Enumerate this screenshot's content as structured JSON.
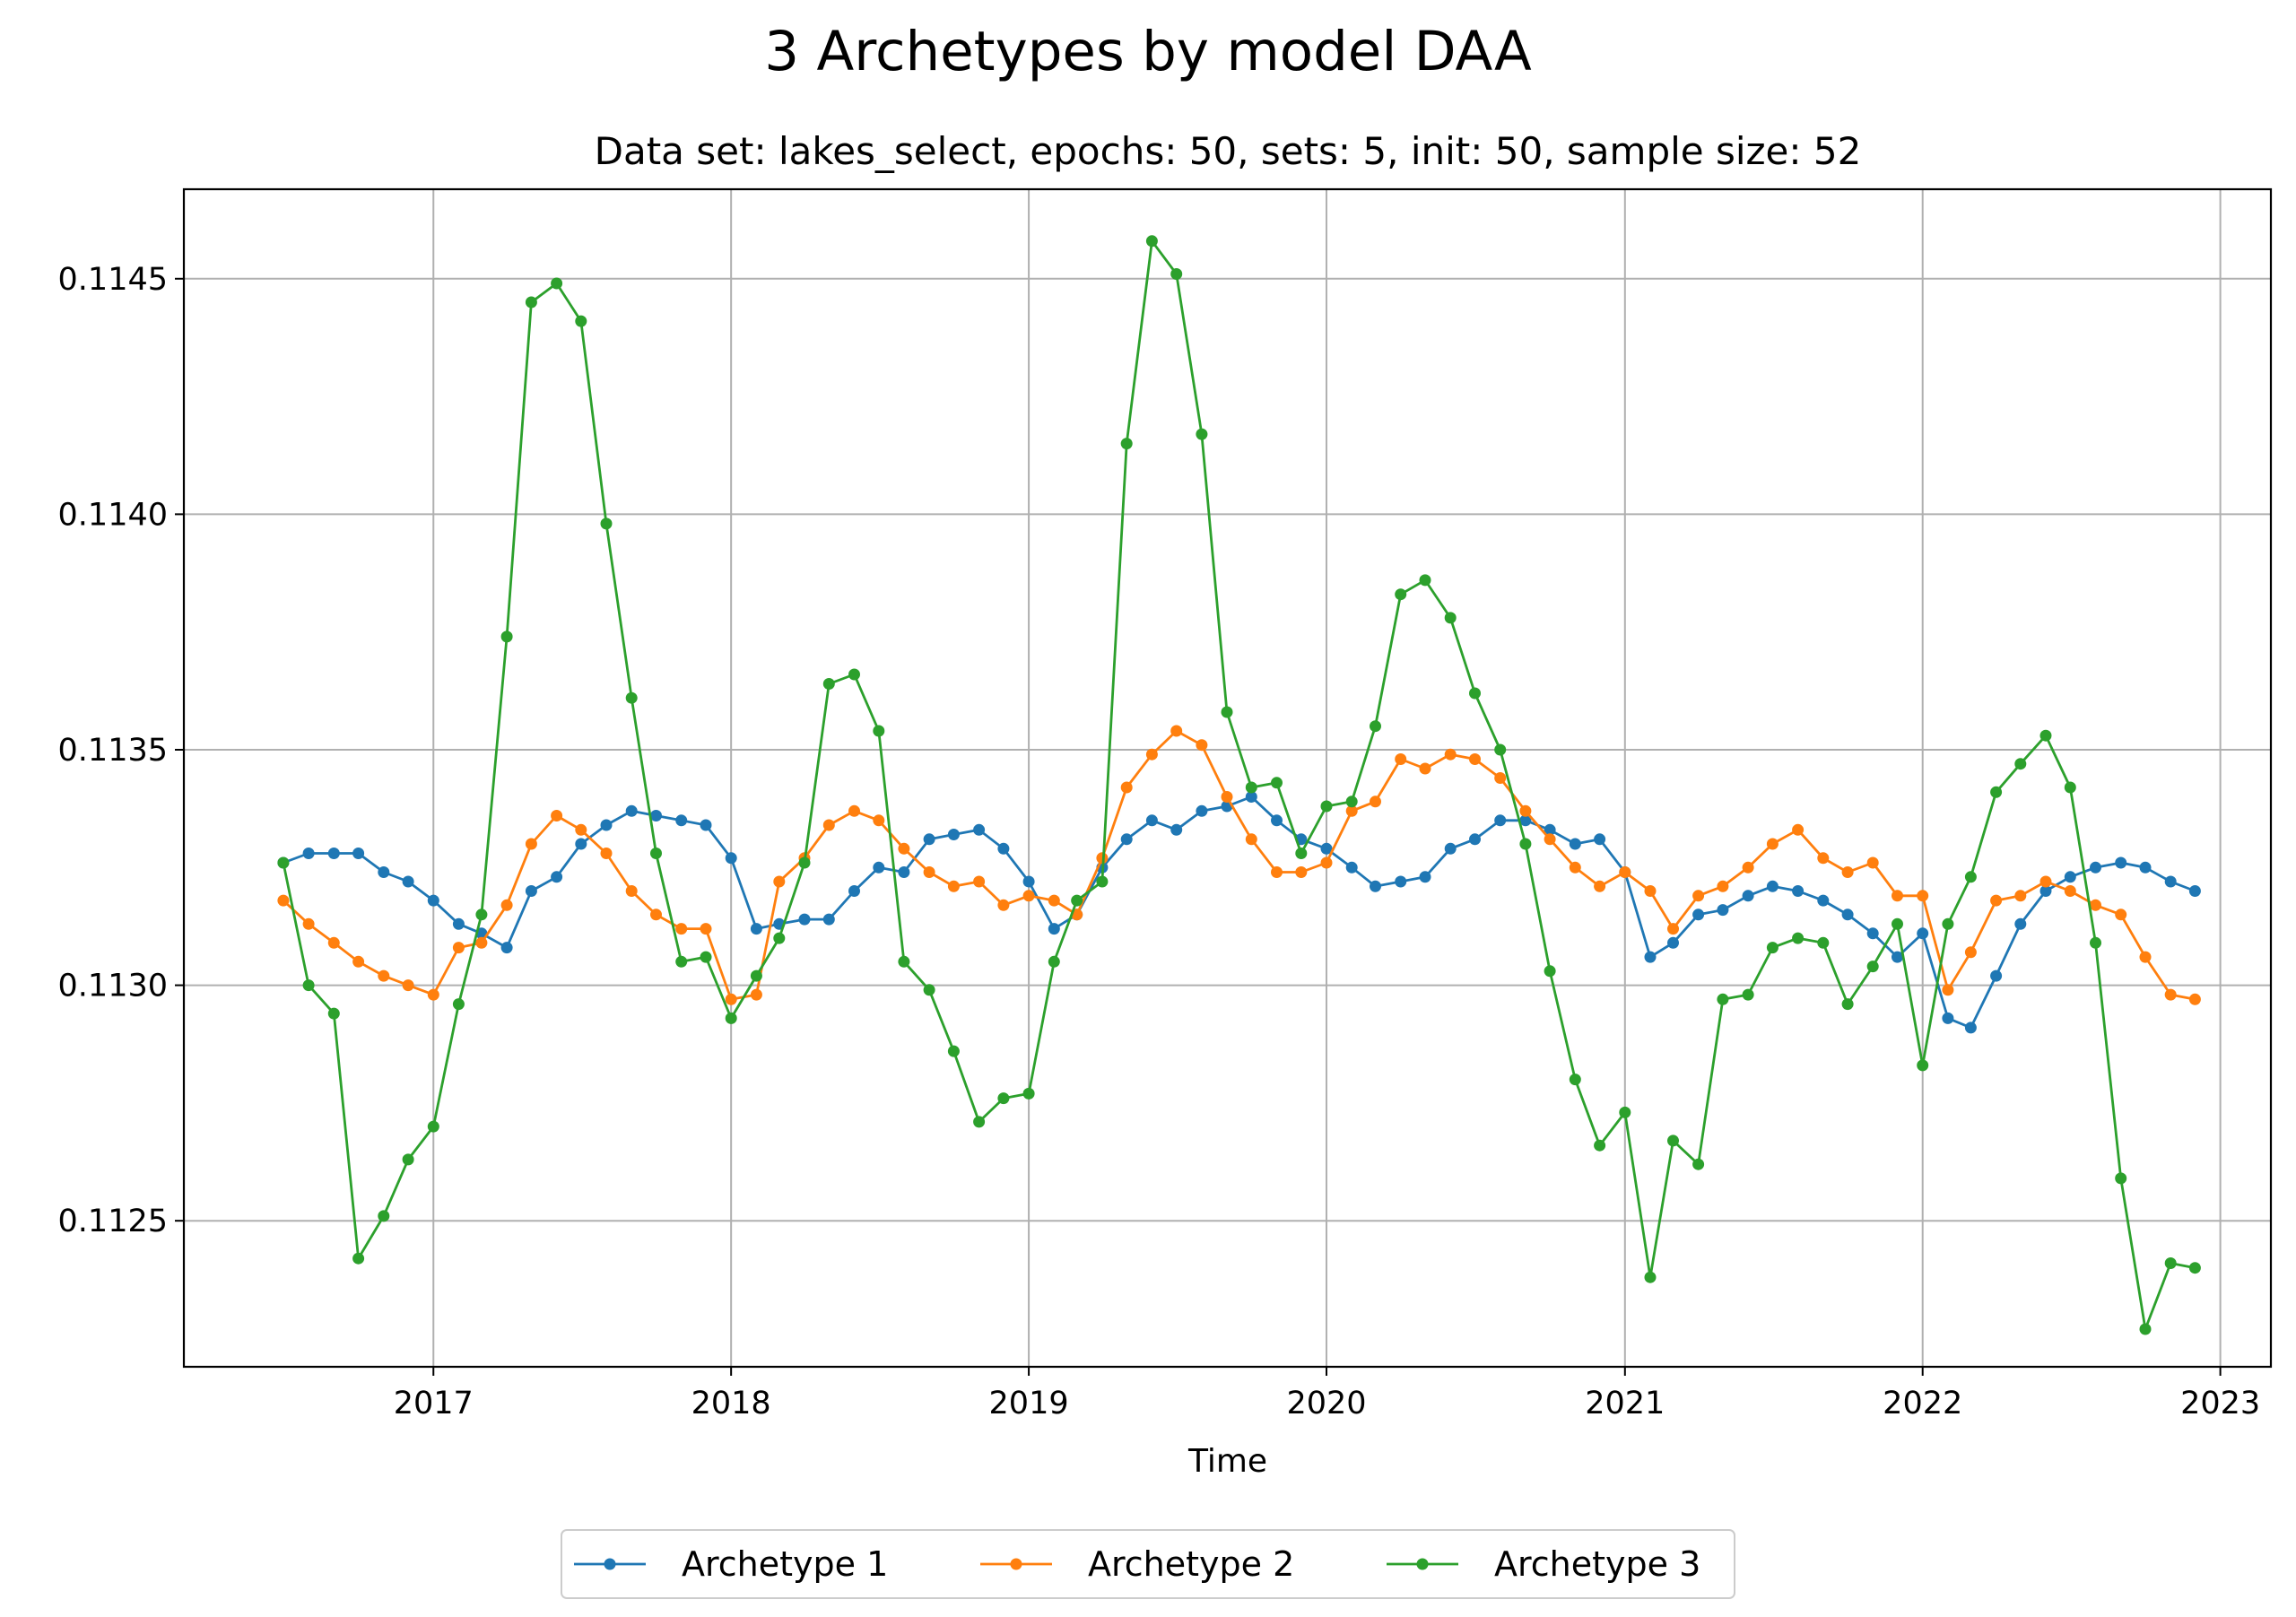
{
  "chart_data": {
    "type": "line",
    "title": "3 Archetypes by model DAA",
    "subtitle": "Data set: lakes_select, epochs: 50, sets: 5, init: 50, sample size: 52",
    "xlabel": "Time",
    "ylabel": "",
    "x_axis": "date",
    "x_start": "2016-07",
    "x_step": "1 month",
    "x": [
      "2016-07",
      "2016-08",
      "2016-09",
      "2016-10",
      "2016-11",
      "2016-12",
      "2017-01",
      "2017-02",
      "2017-03",
      "2017-04",
      "2017-05",
      "2017-06",
      "2017-07",
      "2017-08",
      "2017-09",
      "2017-10",
      "2017-11",
      "2017-12",
      "2018-01",
      "2018-02",
      "2018-03",
      "2018-04",
      "2018-05",
      "2018-06",
      "2018-07",
      "2018-08",
      "2018-09",
      "2018-10",
      "2018-11",
      "2018-12",
      "2019-01",
      "2019-02",
      "2019-03",
      "2019-04",
      "2019-05",
      "2019-06",
      "2019-07",
      "2019-08",
      "2019-09",
      "2019-10",
      "2019-11",
      "2019-12",
      "2020-01",
      "2020-02",
      "2020-03",
      "2020-04",
      "2020-05",
      "2020-06",
      "2020-07",
      "2020-08",
      "2020-09",
      "2020-10",
      "2020-11",
      "2020-12",
      "2021-01",
      "2021-02",
      "2021-03",
      "2021-04",
      "2021-05",
      "2021-06",
      "2021-07",
      "2021-08",
      "2021-09",
      "2021-10",
      "2021-11",
      "2021-12",
      "2022-01",
      "2022-02",
      "2022-03",
      "2022-04",
      "2022-05",
      "2022-06",
      "2022-07",
      "2022-08",
      "2022-09",
      "2022-10",
      "2022-11",
      "2022-12"
    ],
    "xlim": [
      "2016-03-01",
      "2023-03-04"
    ],
    "ylim": [
      0.11219,
      0.11469
    ],
    "x_ticks": [
      "2017",
      "2018",
      "2019",
      "2020",
      "2021",
      "2022",
      "2023"
    ],
    "y_ticks": [
      "0.1125",
      "0.1130",
      "0.1135",
      "0.1140",
      "0.1145"
    ],
    "grid": true,
    "legend_position": "bottom-center",
    "series": [
      {
        "name": "Archetype 1",
        "color": "#1f77b4",
        "values": [
          0.11326,
          0.11328,
          0.11328,
          0.11328,
          0.11324,
          0.11322,
          0.11318,
          0.11313,
          0.11311,
          0.11308,
          0.1132,
          0.11323,
          0.1133,
          0.11334,
          0.11337,
          0.11336,
          0.11335,
          0.11334,
          0.11327,
          0.11312,
          0.11313,
          0.11314,
          0.11314,
          0.1132,
          0.11325,
          0.11324,
          0.11331,
          0.11332,
          0.11333,
          0.11329,
          0.11322,
          0.11312,
          0.11315,
          0.11325,
          0.11331,
          0.11335,
          0.11333,
          0.11337,
          0.11338,
          0.1134,
          0.11335,
          0.11331,
          0.11329,
          0.11325,
          0.11321,
          0.11322,
          0.11323,
          0.11329,
          0.11331,
          0.11335,
          0.11335,
          0.11333,
          0.1133,
          0.11331,
          0.11324,
          0.11306,
          0.11309,
          0.11315,
          0.11316,
          0.11319,
          0.11321,
          0.1132,
          0.11318,
          0.11315,
          0.11311,
          0.11306,
          0.11311,
          0.11293,
          0.11291,
          0.11302,
          0.11313,
          0.1132,
          0.11323,
          0.11325,
          0.11326,
          0.11325,
          0.11322,
          0.1132
        ]
      },
      {
        "name": "Archetype 2",
        "color": "#ff7f0e",
        "values": [
          0.11318,
          0.11313,
          0.11309,
          0.11305,
          0.11302,
          0.113,
          0.11298,
          0.11308,
          0.11309,
          0.11317,
          0.1133,
          0.11336,
          0.11333,
          0.11328,
          0.1132,
          0.11315,
          0.11312,
          0.11312,
          0.11297,
          0.11298,
          0.11322,
          0.11327,
          0.11334,
          0.11337,
          0.11335,
          0.11329,
          0.11324,
          0.11321,
          0.11322,
          0.11317,
          0.11319,
          0.11318,
          0.11315,
          0.11327,
          0.11342,
          0.11349,
          0.11354,
          0.11351,
          0.1134,
          0.11331,
          0.11324,
          0.11324,
          0.11326,
          0.11337,
          0.11339,
          0.11348,
          0.11346,
          0.11349,
          0.11348,
          0.11344,
          0.11337,
          0.11331,
          0.11325,
          0.11321,
          0.11324,
          0.1132,
          0.11312,
          0.11319,
          0.11321,
          0.11325,
          0.1133,
          0.11333,
          0.11327,
          0.11324,
          0.11326,
          0.11319,
          0.11319,
          0.11299,
          0.11307,
          0.11318,
          0.11319,
          0.11322,
          0.1132,
          0.11317,
          0.11315,
          0.11306,
          0.11298,
          0.11297
        ]
      },
      {
        "name": "Archetype 3",
        "color": "#2ca02c",
        "values": [
          0.11326,
          0.113,
          0.11294,
          0.11242,
          0.11251,
          0.11263,
          0.1127,
          0.11296,
          0.11315,
          0.11374,
          0.11445,
          0.11449,
          0.11441,
          0.11398,
          0.11361,
          0.11328,
          0.11305,
          0.11306,
          0.11293,
          0.11302,
          0.1131,
          0.11326,
          0.11364,
          0.11366,
          0.11354,
          0.11305,
          0.11299,
          0.11286,
          0.11271,
          0.11276,
          0.11277,
          0.11305,
          0.11318,
          0.11322,
          0.11415,
          0.11458,
          0.11451,
          0.11417,
          0.11358,
          0.11342,
          0.11343,
          0.11328,
          0.11338,
          0.11339,
          0.11355,
          0.11383,
          0.11386,
          0.11378,
          0.11362,
          0.1135,
          0.1133,
          0.11303,
          0.1128,
          0.11266,
          0.11273,
          0.11238,
          0.11267,
          0.11262,
          0.11297,
          0.11298,
          0.11308,
          0.1131,
          0.11309,
          0.11296,
          0.11304,
          0.11313,
          0.11283,
          0.11313,
          0.11323,
          0.11341,
          0.11347,
          0.11353,
          0.11342,
          0.11309,
          0.11259,
          0.11227,
          0.11241,
          0.1124
        ]
      }
    ]
  }
}
